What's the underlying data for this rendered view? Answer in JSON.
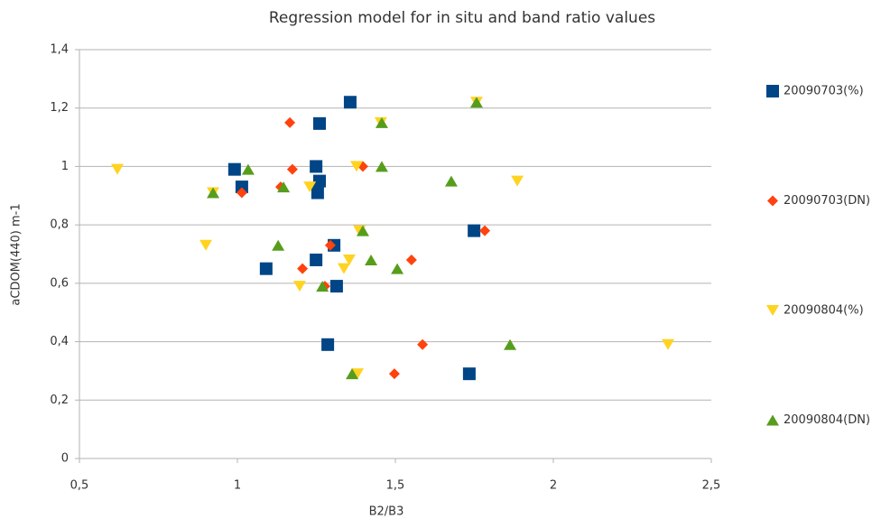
{
  "chart_data": {
    "type": "scatter",
    "title": "Regression model for in situ and band ratio values",
    "x_label": "B2/B3",
    "y_label": "aCDOM(440) m-1",
    "xlim": [
      0.5,
      2.5
    ],
    "xticks": [
      {
        "value": 0.5,
        "label": "0,5"
      },
      1,
      {
        "value": 1.5,
        "label": "1,5"
      },
      2,
      {
        "value": 2.5,
        "label": "2,5"
      }
    ],
    "ylim": [
      0,
      1.4
    ],
    "yticks": [
      0,
      {
        "value": 0.2,
        "label": "0,2"
      },
      {
        "value": 0.4,
        "label": "0,4"
      },
      {
        "value": 0.6,
        "label": "0,6"
      },
      {
        "value": 0.8,
        "label": "0,8"
      },
      1,
      {
        "value": 1.2,
        "label": "1,2"
      },
      {
        "value": 1.4,
        "label": "1,4"
      }
    ],
    "grid": true,
    "legend": "right",
    "series": [
      {
        "name": "20090703(%)",
        "color": "#004586",
        "marker": "square",
        "x": [
          1.357,
          1.26,
          0.991,
          1.014,
          1.249,
          1.26,
          1.254,
          1.306,
          1.249,
          1.091,
          1.314,
          1.749,
          1.286,
          1.734
        ],
        "values": [
          1.22,
          1.147,
          0.99,
          0.93,
          1.0,
          0.95,
          0.91,
          0.73,
          0.68,
          0.65,
          0.59,
          0.78,
          0.39,
          0.29
        ]
      },
      {
        "name": "20090703(DN)",
        "color": "#ff420e",
        "marker": "diamond",
        "x": [
          1.166,
          1.174,
          1.014,
          1.137,
          1.397,
          1.294,
          1.206,
          1.277,
          1.551,
          1.783,
          1.586,
          1.497
        ],
        "values": [
          1.15,
          0.99,
          0.91,
          0.93,
          1.0,
          0.73,
          0.65,
          0.59,
          0.68,
          0.78,
          0.39,
          0.29
        ]
      },
      {
        "name": "20090804(%)",
        "color": "#ffd320",
        "marker": "triangle-down",
        "x": [
          0.62,
          0.923,
          0.9,
          1.229,
          1.377,
          1.454,
          1.757,
          1.886,
          1.386,
          1.354,
          1.337,
          1.197,
          1.38,
          2.363
        ],
        "values": [
          0.99,
          0.91,
          0.73,
          0.93,
          1.0,
          1.15,
          1.22,
          0.95,
          0.78,
          0.68,
          0.65,
          0.59,
          0.29,
          0.39
        ]
      },
      {
        "name": "20090804(DN)",
        "color": "#579d1c",
        "marker": "triangle-up",
        "x": [
          0.923,
          1.034,
          1.146,
          1.129,
          1.457,
          1.457,
          1.757,
          1.677,
          1.397,
          1.423,
          1.506,
          1.269,
          1.363,
          1.863
        ],
        "values": [
          0.91,
          0.99,
          0.93,
          0.73,
          1.15,
          1.0,
          1.22,
          0.95,
          0.78,
          0.68,
          0.65,
          0.59,
          0.29,
          0.39
        ]
      }
    ]
  }
}
